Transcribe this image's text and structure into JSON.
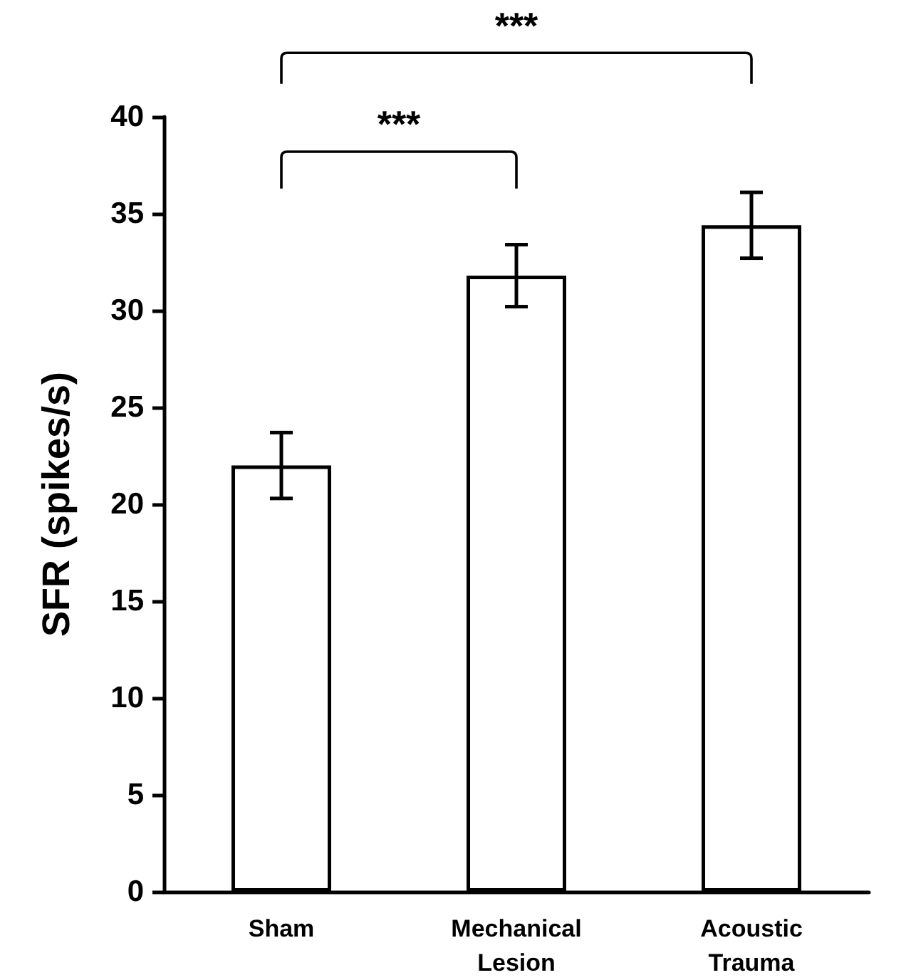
{
  "chart_data": {
    "type": "bar",
    "ylabel": "SFR (spikes/s)",
    "categories": [
      "Sham",
      "Mechanical Lesion",
      "Acoustic Trauma"
    ],
    "values": [
      22.0,
      31.8,
      34.4
    ],
    "errors": [
      1.7,
      1.6,
      1.7
    ],
    "color": "#ffffff",
    "ylim": [
      0,
      40
    ],
    "yticks": [
      0,
      5,
      10,
      15,
      20,
      25,
      30,
      35,
      40
    ],
    "grid": false,
    "annotations": [
      "***",
      "***"
    ]
  }
}
